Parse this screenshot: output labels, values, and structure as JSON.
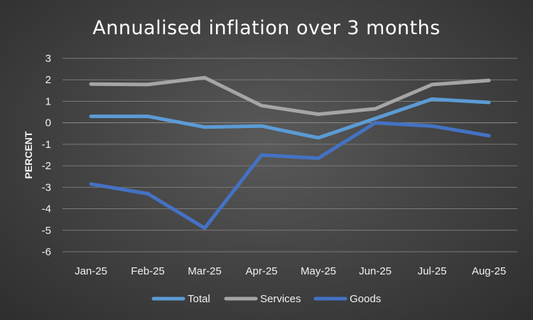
{
  "chart_data": {
    "type": "line",
    "title": "Annualised inflation over 3 months",
    "xlabel": "",
    "ylabel": "PERCENT",
    "categories": [
      "Jan-25",
      "Feb-25",
      "Mar-25",
      "Apr-25",
      "May-25",
      "Jun-25",
      "Jul-25",
      "Aug-25"
    ],
    "ylim": [
      -6,
      3
    ],
    "yticks": [
      "3",
      "2",
      "1",
      "0",
      "-1",
      "-2",
      "-3",
      "-4",
      "-5",
      "-6"
    ],
    "grid": true,
    "legend_position": "bottom-center",
    "series": [
      {
        "name": "Total",
        "color": "#5b9bd5",
        "values": [
          0.3,
          0.3,
          -0.2,
          -0.15,
          -0.7,
          0.2,
          1.1,
          0.95
        ]
      },
      {
        "name": "Services",
        "color": "#a5a5a5",
        "values": [
          1.8,
          1.78,
          2.1,
          0.8,
          0.4,
          0.65,
          1.78,
          1.97
        ]
      },
      {
        "name": "Goods",
        "color": "#4472c4",
        "values": [
          -2.85,
          -3.3,
          -4.9,
          -1.5,
          -1.65,
          0.0,
          -0.15,
          -0.6
        ]
      }
    ]
  }
}
